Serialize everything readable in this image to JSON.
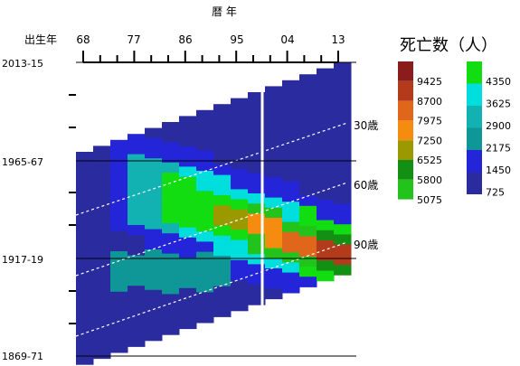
{
  "chart_data": {
    "type": "heatmap",
    "title": "",
    "xlabel": "暦 年",
    "ylabel": "出生年",
    "x_ticks": [
      "68",
      "77",
      "86",
      "95",
      "04",
      "13"
    ],
    "y_ticks": [
      "2013-15",
      "1965-67",
      "1917-19",
      "1869-71"
    ],
    "age_lines": [
      "30歳",
      "60歳",
      "90歳"
    ],
    "legend": {
      "title": "死亡数（人）",
      "levels": [
        {
          "value": "9425",
          "color": "#8b1c1c"
        },
        {
          "value": "8700",
          "color": "#b43a1c"
        },
        {
          "value": "7975",
          "color": "#e0661c"
        },
        {
          "value": "7250",
          "color": "#f58c10"
        },
        {
          "value": "6525",
          "color": "#9a9a00"
        },
        {
          "value": "5800",
          "color": "#138f13"
        },
        {
          "value": "5075",
          "color": "#22c41c"
        },
        {
          "value": "4350",
          "color": "#11dd11"
        },
        {
          "value": "3625",
          "color": "#00dddd"
        },
        {
          "value": "2900",
          "color": "#12b2b2"
        },
        {
          "value": "2175",
          "color": "#0f9696"
        },
        {
          "value": "1450",
          "color": "#2424d8"
        },
        {
          "value": "725",
          "color": "#2b2ba0"
        }
      ]
    },
    "gap_year_marker": "white vertical line near 2000"
  }
}
